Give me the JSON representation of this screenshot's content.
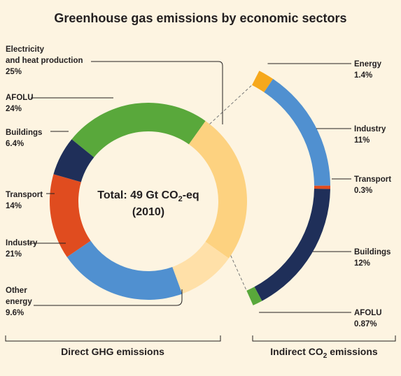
{
  "chart_data": {
    "type": "pie",
    "title": "Greenhouse gas emissions by economic sectors",
    "center_label": {
      "line1_prefix": "Total: 49 Gt CO",
      "line1_sub": "2",
      "line1_suffix": "-eq",
      "line2": "(2010)"
    },
    "direct": {
      "footer": "Direct GHG emissions",
      "slices": [
        {
          "key": "electricity",
          "label_lines": [
            "Electricity",
            "and heat production"
          ],
          "value_text": "25%",
          "value": 25,
          "color": "#fdd280"
        },
        {
          "key": "afolu",
          "label_lines": [
            "AFOLU"
          ],
          "value_text": "24%",
          "value": 24,
          "color": "#59a83b"
        },
        {
          "key": "buildings",
          "label_lines": [
            "Buildings"
          ],
          "value_text": "6.4%",
          "value": 6.4,
          "color": "#1f2f59"
        },
        {
          "key": "transport",
          "label_lines": [
            "Transport"
          ],
          "value_text": "14%",
          "value": 14,
          "color": "#e04c1f"
        },
        {
          "key": "industry",
          "label_lines": [
            "Industry"
          ],
          "value_text": "21%",
          "value": 21,
          "color": "#5090d0"
        },
        {
          "key": "other",
          "label_lines": [
            "Other",
            "energy"
          ],
          "value_text": "9.6%",
          "value": 9.6,
          "color": "#ffe0a8"
        }
      ]
    },
    "indirect": {
      "footer_prefix": "Indirect CO",
      "footer_sub": "2",
      "footer_suffix": " emissions",
      "slices": [
        {
          "key": "energy",
          "label_lines": [
            "Energy"
          ],
          "value_text": "1.4%",
          "value": 1.4,
          "color": "#f6a81c"
        },
        {
          "key": "industry",
          "label_lines": [
            "Industry"
          ],
          "value_text": "11%",
          "value": 11,
          "color": "#5090d0"
        },
        {
          "key": "transport",
          "label_lines": [
            "Transport"
          ],
          "value_text": "0.3%",
          "value": 0.3,
          "color": "#e04c1f"
        },
        {
          "key": "buildings",
          "label_lines": [
            "Buildings"
          ],
          "value_text": "12%",
          "value": 12,
          "color": "#1f2f59"
        },
        {
          "key": "afolu",
          "label_lines": [
            "AFOLU"
          ],
          "value_text": "0.87%",
          "value": 0.87,
          "color": "#59a83b"
        }
      ]
    }
  }
}
